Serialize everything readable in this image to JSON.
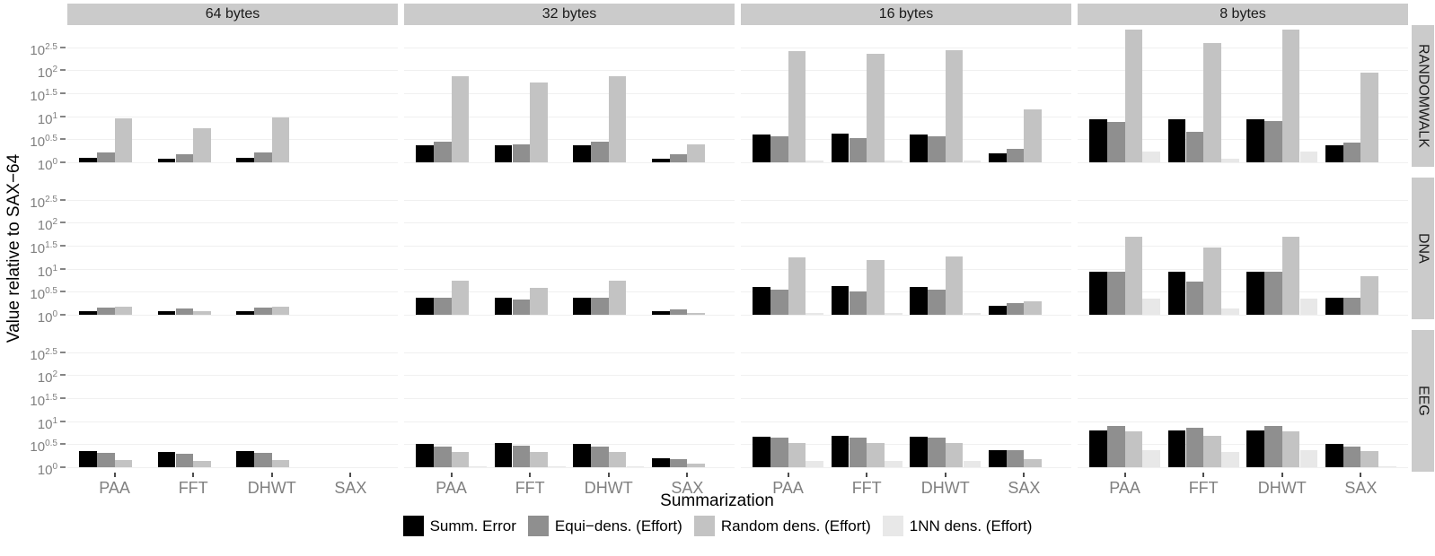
{
  "chart_data": {
    "type": "bar",
    "title": "",
    "xlabel": "Summarization",
    "ylabel": "Value relative to SAX−64",
    "facet_columns": [
      "64 bytes",
      "32 bytes",
      "16 bytes",
      "8 bytes"
    ],
    "facet_rows": [
      "RANDOMWALK",
      "DNA",
      "EEG"
    ],
    "categories": [
      "PAA",
      "FFT",
      "DHWT",
      "SAX"
    ],
    "series": [
      {
        "name": "Summ. Error",
        "color": "#000000"
      },
      {
        "name": "Equi−dens. (Effort)",
        "color": "#8f8f8f"
      },
      {
        "name": "Random dens. (Effort)",
        "color": "#c3c3c3"
      },
      {
        "name": "1NN dens. (Effort)",
        "color": "#e8e8e8"
      }
    ],
    "y_scale": "log10",
    "y_tick_exponents": [
      "2.5",
      "2",
      "1.5",
      "1",
      "0.5",
      "0"
    ],
    "ylim_exponents": [
      0,
      2.98
    ],
    "grid": "on",
    "legend_position": "bottom",
    "values_by_row_col_category_series": [
      [
        [
          [
            1.25,
            1.65,
            9.0,
            1.0
          ],
          [
            1.2,
            1.5,
            5.6,
            1.0
          ],
          [
            1.25,
            1.65,
            9.5,
            1.0
          ],
          [
            1.0,
            1.0,
            1.0,
            1.0
          ]
        ],
        [
          [
            2.3,
            2.8,
            75,
            1.0
          ],
          [
            2.3,
            2.5,
            55,
            1.0
          ],
          [
            2.3,
            2.8,
            75,
            1.0
          ],
          [
            1.2,
            1.5,
            2.5,
            1.0
          ]
        ],
        [
          [
            4.0,
            3.7,
            260,
            1.1
          ],
          [
            4.2,
            3.4,
            230,
            1.1
          ],
          [
            4.0,
            3.7,
            265,
            1.1
          ],
          [
            1.6,
            2.0,
            14,
            1.0
          ]
        ],
        [
          [
            8.6,
            7.4,
            760,
            1.7
          ],
          [
            8.8,
            4.5,
            390,
            1.2
          ],
          [
            8.6,
            7.7,
            775,
            1.7
          ],
          [
            2.4,
            2.7,
            90,
            1.0
          ]
        ]
      ],
      [
        [
          [
            1.2,
            1.45,
            1.5,
            1.0
          ],
          [
            1.2,
            1.4,
            1.2,
            1.0
          ],
          [
            1.2,
            1.45,
            1.5,
            1.0
          ],
          [
            1.0,
            1.0,
            1.0,
            1.0
          ]
        ],
        [
          [
            2.3,
            2.3,
            5.6,
            1.0
          ],
          [
            2.3,
            2.1,
            3.9,
            1.0
          ],
          [
            2.3,
            2.3,
            5.6,
            1.0
          ],
          [
            1.2,
            1.3,
            1.1,
            1.0
          ]
        ],
        [
          [
            4.1,
            3.5,
            18,
            1.1
          ],
          [
            4.2,
            3.2,
            15.5,
            1.1
          ],
          [
            4.1,
            3.5,
            18.5,
            1.1
          ],
          [
            1.6,
            1.8,
            2.0,
            1.0
          ]
        ],
        [
          [
            8.7,
            8.7,
            50,
            2.2
          ],
          [
            8.8,
            5.3,
            29,
            1.35
          ],
          [
            8.7,
            8.7,
            50,
            2.2
          ],
          [
            2.4,
            2.4,
            7.0,
            1.0
          ]
        ]
      ],
      [
        [
          [
            2.2,
            2.05,
            1.45,
            1.0
          ],
          [
            2.1,
            2.0,
            1.4,
            1.0
          ],
          [
            2.2,
            2.05,
            1.45,
            1.0
          ],
          [
            1.0,
            1.0,
            1.0,
            1.0
          ]
        ],
        [
          [
            3.2,
            2.8,
            2.1,
            1.05
          ],
          [
            3.3,
            2.9,
            2.1,
            1.05
          ],
          [
            3.2,
            2.8,
            2.1,
            1.05
          ],
          [
            1.6,
            1.5,
            1.2,
            1.0
          ]
        ],
        [
          [
            4.5,
            4.4,
            3.4,
            1.4
          ],
          [
            4.8,
            4.3,
            3.4,
            1.35
          ],
          [
            4.5,
            4.4,
            3.4,
            1.4
          ],
          [
            2.4,
            2.3,
            1.5,
            1.0
          ]
        ],
        [
          [
            6.2,
            7.7,
            6.0,
            2.3
          ],
          [
            6.4,
            7.2,
            4.9,
            2.1
          ],
          [
            6.2,
            7.7,
            6.0,
            2.3
          ],
          [
            3.2,
            2.8,
            2.2,
            1.05
          ]
        ]
      ]
    ],
    "colors": {
      "strip_background": "#cbcbcb",
      "gridline": "#f0f0f0",
      "axis_tick_text": "#808080",
      "axis_title_text": "#000000",
      "panel_background": "#ffffff"
    }
  }
}
